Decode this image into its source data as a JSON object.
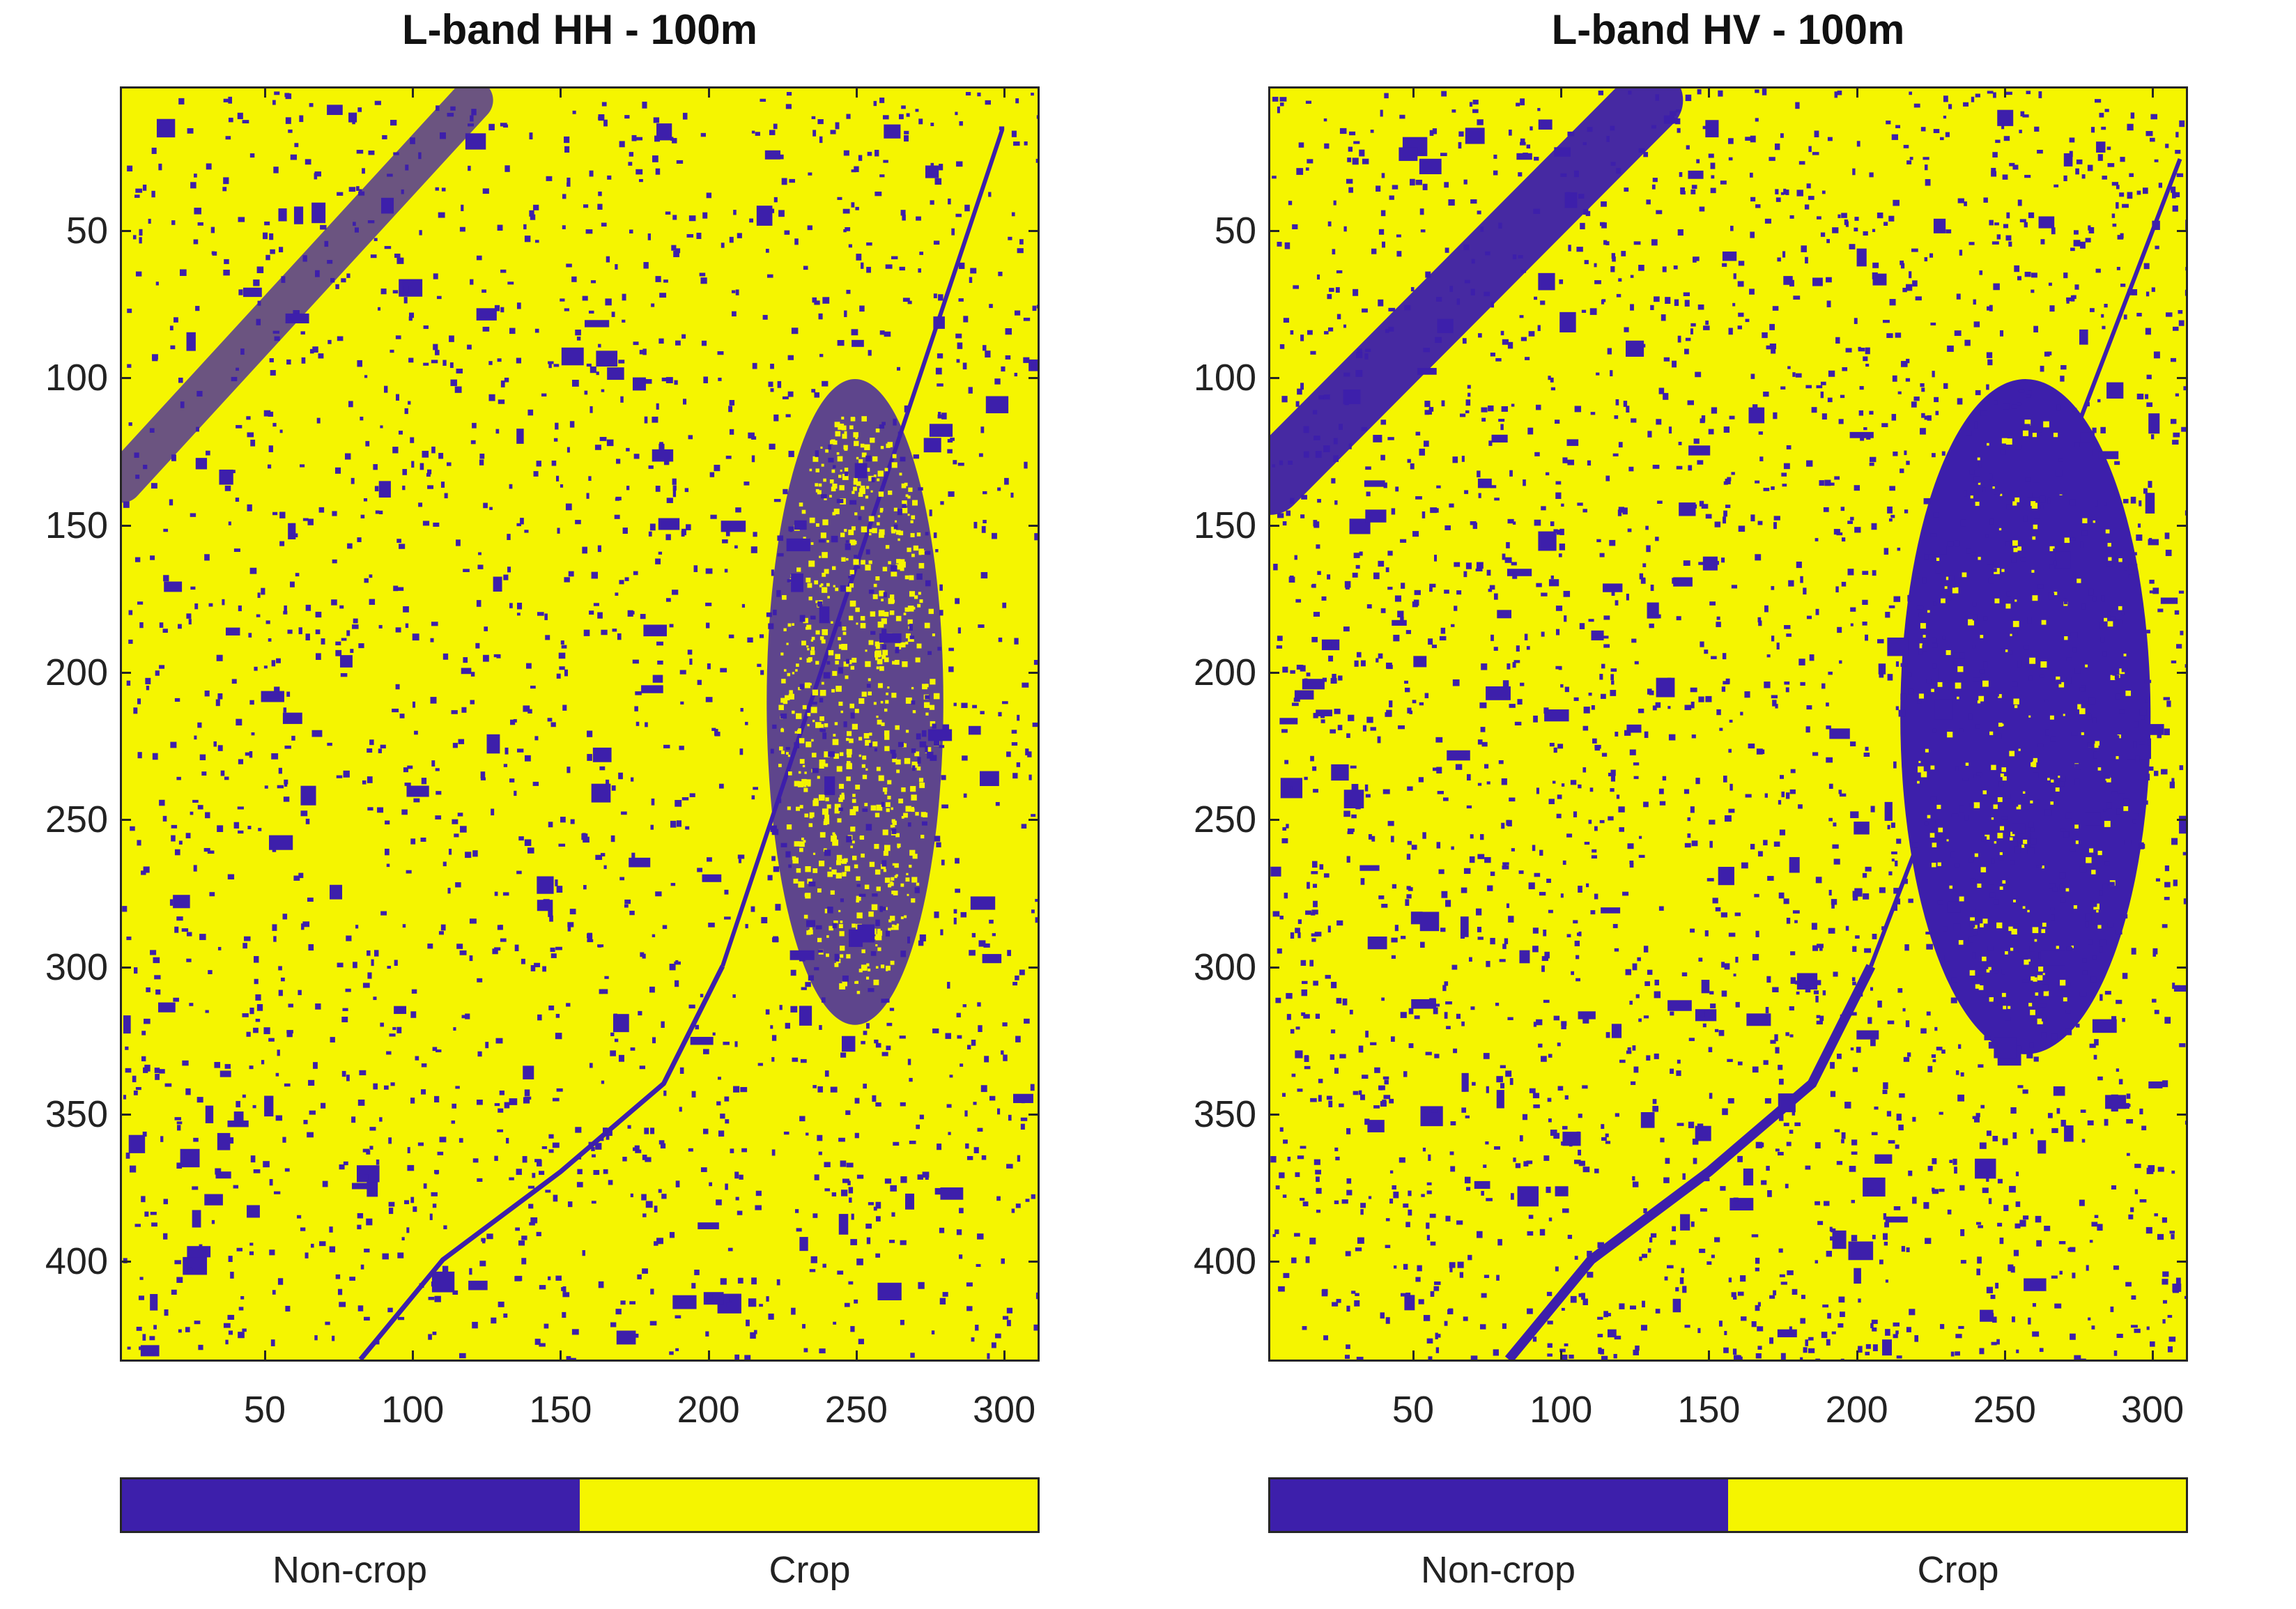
{
  "chart_data": [
    {
      "type": "heatmap",
      "title": "L-band HH - 100m",
      "xlabel": "",
      "ylabel": "",
      "xlim": [
        1,
        312
      ],
      "ylim": [
        434,
        1
      ],
      "x_ticks": [
        "50",
        "100",
        "150",
        "200",
        "250",
        "300"
      ],
      "y_ticks": [
        "50",
        "100",
        "150",
        "200",
        "250",
        "300",
        "350",
        "400"
      ],
      "classes": [
        {
          "name": "Non-crop",
          "color": "#3d1fab"
        },
        {
          "name": "Crop",
          "color": "#f5f500"
        }
      ],
      "features": {
        "dense_noncrop_region": {
          "x_range": [
            220,
            280
          ],
          "y_range": [
            100,
            320
          ]
        },
        "river_band": {
          "from": [
            1,
            135
          ],
          "to": [
            120,
            5
          ]
        },
        "diagonal_channel": {
          "from": [
            300,
            15
          ],
          "to": [
            205,
            300
          ]
        }
      }
    },
    {
      "type": "heatmap",
      "title": "L-band HV - 100m",
      "xlabel": "",
      "ylabel": "",
      "xlim": [
        1,
        312
      ],
      "ylim": [
        434,
        1
      ],
      "x_ticks": [
        "50",
        "100",
        "150",
        "200",
        "250",
        "300"
      ],
      "y_ticks": [
        "50",
        "100",
        "150",
        "200",
        "250",
        "300",
        "350",
        "400"
      ],
      "classes": [
        {
          "name": "Non-crop",
          "color": "#3d1fab"
        },
        {
          "name": "Crop",
          "color": "#f5f500"
        }
      ],
      "features": {
        "dense_noncrop_region": {
          "x_range": [
            215,
            300
          ],
          "y_range": [
            100,
            330
          ]
        },
        "river_band": {
          "from": [
            1,
            135
          ],
          "to": [
            130,
            5
          ]
        },
        "diagonal_channel": {
          "from": [
            310,
            25
          ],
          "to": [
            205,
            300
          ]
        }
      }
    }
  ],
  "colors": {
    "noncrop": "#3d1fab",
    "crop": "#f5f500",
    "axis": "#262626"
  }
}
